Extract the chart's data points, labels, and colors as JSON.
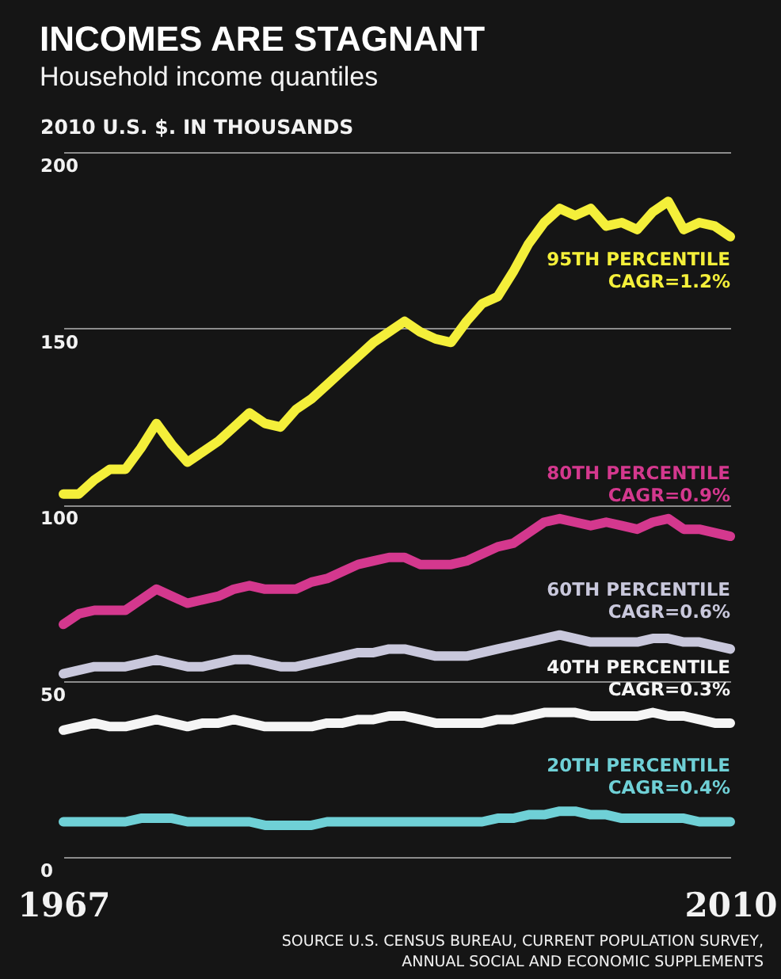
{
  "chart_data": {
    "type": "line",
    "title": "INCOMES ARE STAGNANT",
    "subtitle": "Household income quantiles",
    "ylabel": "2010 U.S. $. IN THOUSANDS",
    "x": [
      1967,
      1968,
      1969,
      1970,
      1971,
      1972,
      1973,
      1974,
      1975,
      1976,
      1977,
      1978,
      1979,
      1980,
      1981,
      1982,
      1983,
      1984,
      1985,
      1986,
      1987,
      1988,
      1989,
      1990,
      1991,
      1992,
      1993,
      1994,
      1995,
      1996,
      1997,
      1998,
      1999,
      2000,
      2001,
      2002,
      2003,
      2004,
      2005,
      2006,
      2007,
      2008,
      2009,
      2010
    ],
    "xlim": [
      1967,
      2010
    ],
    "xticks": [
      1967,
      2010
    ],
    "ylim": [
      0,
      200
    ],
    "yticks": [
      0,
      50,
      100,
      150,
      200
    ],
    "grid": "y",
    "series": [
      {
        "name": "95TH PERCENTILE\nCAGR=1.2%",
        "color": "#f4ef3a",
        "values": [
          103,
          103,
          107,
          110,
          110,
          116,
          123,
          117,
          112,
          115,
          118,
          122,
          126,
          123,
          122,
          127,
          130,
          134,
          138,
          142,
          146,
          149,
          152,
          149,
          147,
          146,
          152,
          157,
          159,
          166,
          174,
          180,
          184,
          182,
          184,
          179,
          180,
          178,
          183,
          186,
          178,
          180,
          179,
          176
        ]
      },
      {
        "name": "80TH PERCENTILE\nCAGR=0.9%",
        "color": "#d4388e",
        "values": [
          66,
          69,
          70,
          70,
          70,
          73,
          76,
          74,
          72,
          73,
          74,
          76,
          77,
          76,
          76,
          76,
          78,
          79,
          81,
          83,
          84,
          85,
          85,
          83,
          83,
          83,
          84,
          86,
          88,
          89,
          92,
          95,
          96,
          95,
          94,
          95,
          94,
          93,
          95,
          96,
          93,
          93,
          92,
          91
        ]
      },
      {
        "name": "60TH PERCENTILE\nCAGR=0.6%",
        "color": "#c9c8dc",
        "values": [
          52,
          53,
          54,
          54,
          54,
          55,
          56,
          55,
          54,
          54,
          55,
          56,
          56,
          55,
          54,
          54,
          55,
          56,
          57,
          58,
          58,
          59,
          59,
          58,
          57,
          57,
          57,
          58,
          59,
          60,
          61,
          62,
          63,
          62,
          61,
          61,
          61,
          61,
          62,
          62,
          61,
          61,
          60,
          59
        ]
      },
      {
        "name": "40TH PERCENTILE\nCAGR=0.3%",
        "color": "#f5f5f5",
        "values": [
          36,
          37,
          38,
          37,
          37,
          38,
          39,
          38,
          37,
          38,
          38,
          39,
          38,
          37,
          37,
          37,
          37,
          38,
          38,
          39,
          39,
          40,
          40,
          39,
          38,
          38,
          38,
          38,
          39,
          39,
          40,
          41,
          41,
          41,
          40,
          40,
          40,
          40,
          41,
          40,
          40,
          39,
          38,
          38
        ]
      },
      {
        "name": "20TH PERCENTILE\nCAGR=0.4%",
        "color": "#6fd0d6",
        "values": [
          10,
          10,
          10,
          10,
          10,
          11,
          11,
          11,
          10,
          10,
          10,
          10,
          10,
          9,
          9,
          9,
          9,
          10,
          10,
          10,
          10,
          10,
          10,
          10,
          10,
          10,
          10,
          10,
          11,
          11,
          12,
          12,
          13,
          13,
          12,
          12,
          11,
          11,
          11,
          11,
          11,
          10,
          10,
          10
        ]
      }
    ],
    "annotations": [
      "SOURCE U.S. CENSUS BUREAU, CURRENT POPULATION SURVEY,\nANNUAL SOCIAL AND ECONOMIC SUPPLEMENTS"
    ]
  }
}
